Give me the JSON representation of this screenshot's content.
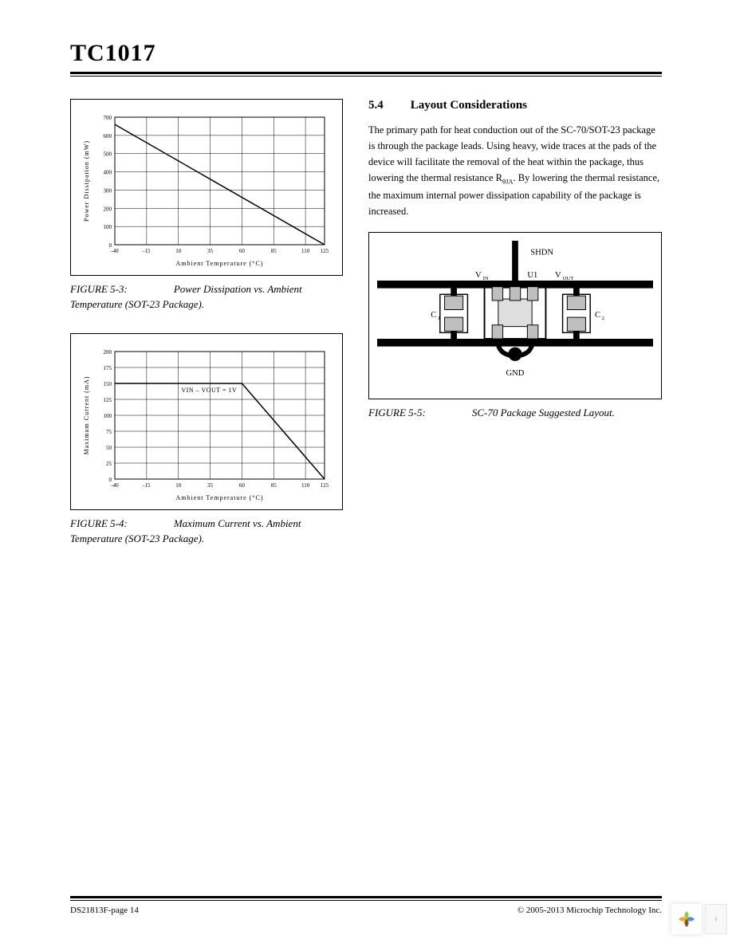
{
  "header": {
    "title": "TC1017"
  },
  "footer": {
    "left": "DS21813F-page 14",
    "right": "© 2005-2013 Microchip Technology Inc."
  },
  "section": {
    "number": "5.4",
    "title": "Layout Considerations",
    "body_pre": "The primary path for heat conduction out of the SC-70/SOT-23 package is through the package leads. Using heavy, wide traces at the pads of the device will facilitate the removal of the heat within the package, thus lowering the thermal resistance R",
    "body_sub": "θJA",
    "body_post": ". By lowering the thermal resistance, the maximum internal power dissipation capability of the package is increased."
  },
  "fig53": {
    "type": "line",
    "caption_num": "FIGURE 5-3:",
    "caption_text": "Power Dissipation vs. Ambient Temperature (SOT-23 Package).",
    "xlabel": "Ambient Temperature (°C)",
    "ylabel": "Power Dissipation (mW)",
    "x_ticks": [
      -40,
      -15,
      10,
      35,
      60,
      85,
      110,
      125
    ],
    "y_ticks": [
      0,
      100,
      200,
      300,
      400,
      500,
      600,
      700
    ],
    "xlim": [
      -40,
      125
    ],
    "ylim": [
      0,
      700
    ],
    "series": {
      "x": [
        -40,
        125
      ],
      "y": [
        660,
        0
      ]
    },
    "line_color": "#000000",
    "grid_color": "#000000",
    "tick_fontsize": 7,
    "label_fontsize": 8,
    "background_color": "#ffffff"
  },
  "fig54": {
    "type": "line",
    "caption_num": "FIGURE 5-4:",
    "caption_text": "Maximum Current vs. Ambient Temperature (SOT-23 Package).",
    "xlabel": "Ambient Temperature (°C)",
    "ylabel": "Maximum Current (mA)",
    "note": "VIN – VOUT = 1V",
    "x_ticks": [
      -40,
      -15,
      10,
      35,
      60,
      85,
      110,
      125
    ],
    "y_ticks": [
      0,
      25,
      50,
      75,
      100,
      125,
      150,
      175,
      200
    ],
    "xlim": [
      -40,
      125
    ],
    "ylim": [
      0,
      200
    ],
    "series": {
      "x": [
        -40,
        60,
        125
      ],
      "y": [
        150,
        150,
        0
      ]
    },
    "line_color": "#000000",
    "grid_color": "#000000",
    "tick_fontsize": 7,
    "label_fontsize": 8,
    "background_color": "#ffffff"
  },
  "fig55": {
    "type": "diagram",
    "caption_num": "FIGURE 5-5:",
    "caption_text": "SC-70 Package Suggested Layout.",
    "labels": {
      "shdn": "SHDN",
      "vin": "V",
      "vin_sub": "IN",
      "vout": "V",
      "vout_sub": "OUT",
      "u1": "U1",
      "c1": "C",
      "c1_sub": "1",
      "c2": "C",
      "c2_sub": "2",
      "gnd": "GND"
    },
    "colors": {
      "pad": "#bfbfbf",
      "body": "#dedede",
      "outline": "#000000",
      "trace": "#000000",
      "background": "#ffffff"
    },
    "label_fontsize": 11
  }
}
